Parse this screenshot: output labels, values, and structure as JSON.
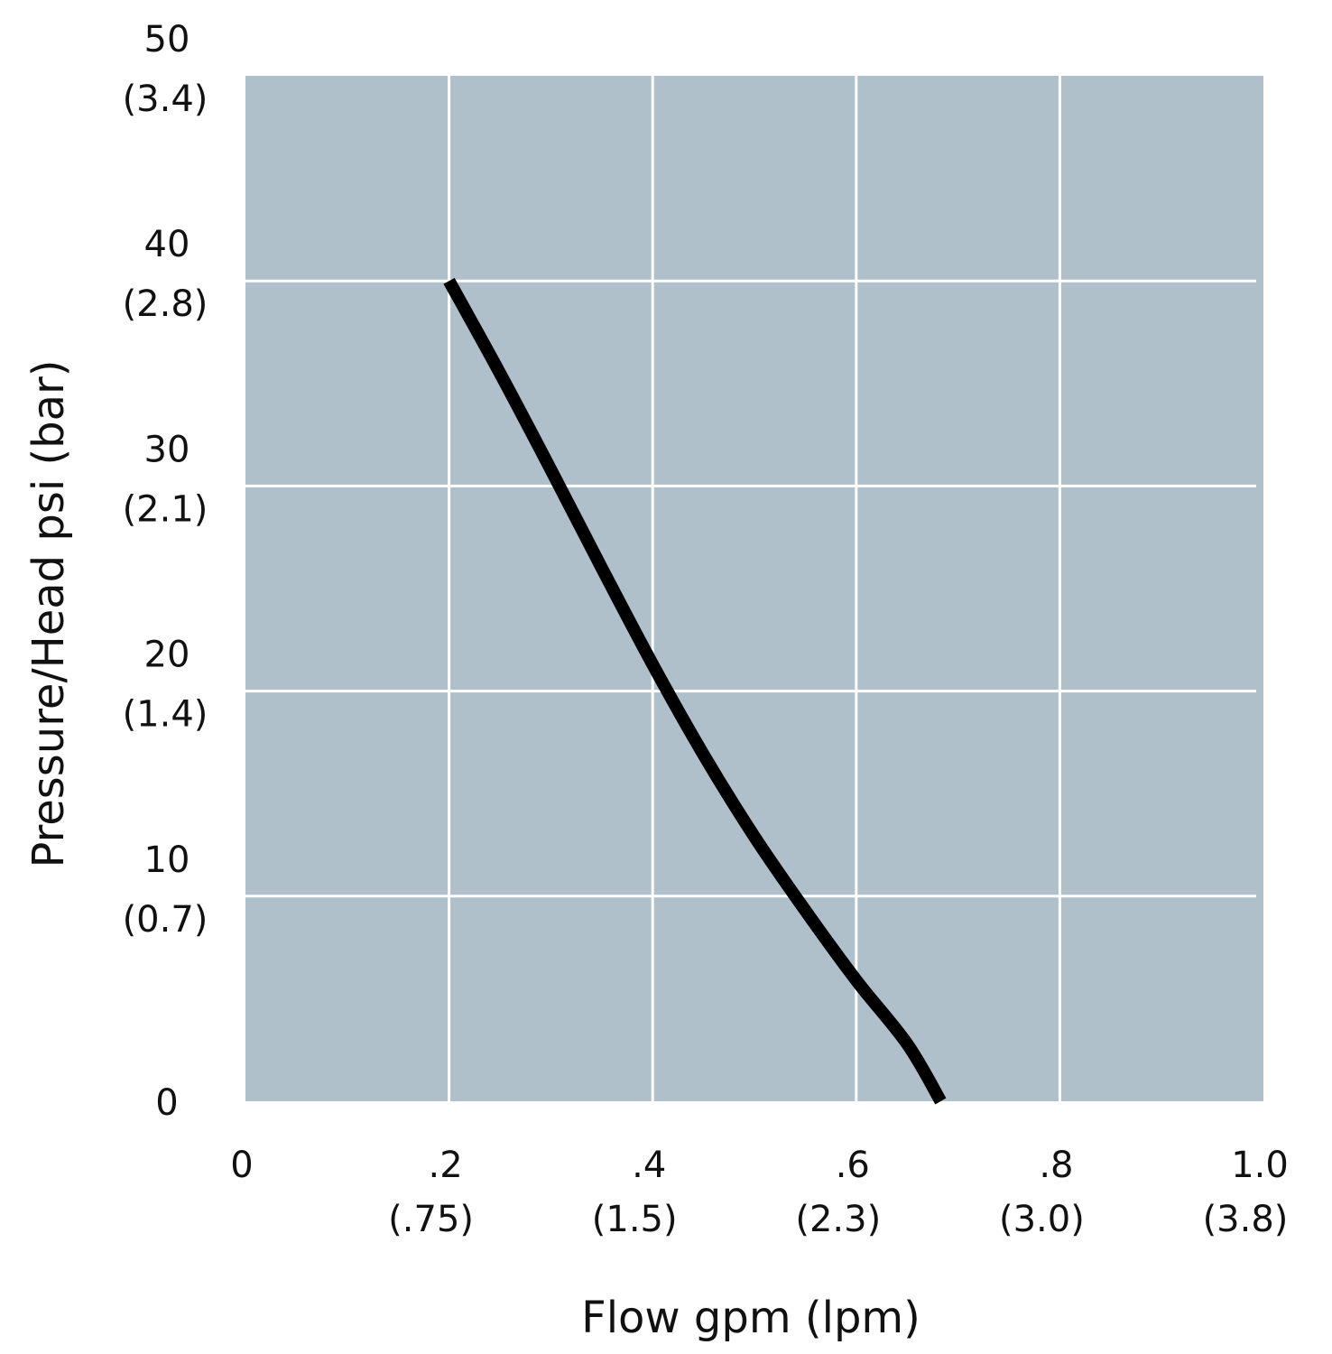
{
  "chart_data": {
    "type": "line",
    "title": "",
    "xlabel": "Flow gpm (lpm)",
    "ylabel": "Pressure/Head psi (bar)",
    "xlim": [
      0,
      1.0
    ],
    "ylim": [
      0,
      50
    ],
    "grid": true,
    "x_ticks": [
      {
        "value": 0,
        "label": "0",
        "sub": ""
      },
      {
        "value": 0.2,
        "label": ".2",
        "sub": "(.75)"
      },
      {
        "value": 0.4,
        "label": ".4",
        "sub": "(1.5)"
      },
      {
        "value": 0.6,
        "label": ".6",
        "sub": "(2.3)"
      },
      {
        "value": 0.8,
        "label": ".8",
        "sub": "(3.0)"
      },
      {
        "value": 1.0,
        "label": "1.0",
        "sub": "(3.8)"
      }
    ],
    "y_ticks": [
      {
        "value": 0,
        "label": "0",
        "sub": ""
      },
      {
        "value": 10,
        "label": "10",
        "sub": "(0.7)"
      },
      {
        "value": 20,
        "label": "20",
        "sub": "(1.4)"
      },
      {
        "value": 30,
        "label": "30",
        "sub": "(2.1)"
      },
      {
        "value": 40,
        "label": "40",
        "sub": "(2.8)"
      },
      {
        "value": 50,
        "label": "50",
        "sub": "(3.4)"
      }
    ],
    "series": [
      {
        "x": [
          0.2,
          0.25,
          0.3,
          0.35,
          0.4,
          0.45,
          0.5,
          0.55,
          0.6,
          0.65,
          0.683
        ],
        "y": [
          40,
          35.5,
          30.8,
          26.0,
          21.3,
          16.9,
          12.9,
          9.3,
          5.9,
          2.8,
          0
        ],
        "color": "#000000"
      }
    ],
    "colors": {
      "plot_bg": "#afc0ca",
      "grid": "#ffffff",
      "line": "#000000"
    }
  }
}
